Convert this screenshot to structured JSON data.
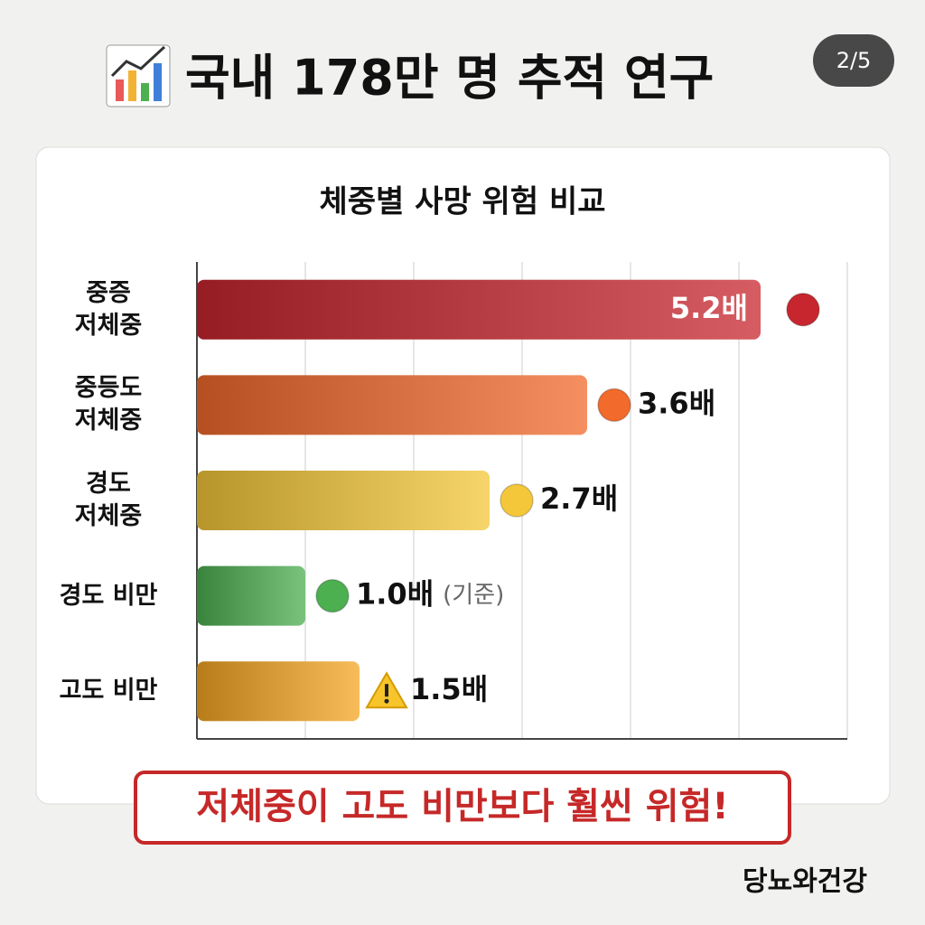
{
  "header": {
    "title": "국내 178만 명 추적 연구",
    "badge": "2/5"
  },
  "chart_data": {
    "type": "hbar",
    "title": "체중별 사망 위험 비교",
    "categories": [
      "중증\n저체중",
      "중등도\n저체중",
      "경도\n저체중",
      "경도 비만",
      "고도 비만"
    ],
    "values": [
      5.2,
      3.6,
      2.7,
      1.0,
      1.5
    ],
    "value_labels": [
      "5.2배",
      "3.6배",
      "2.7배",
      "1.0배",
      "1.5배"
    ],
    "value_notes": [
      null,
      null,
      null,
      "(기준)",
      null
    ],
    "colors": [
      "#c8262e",
      "#f26a2c",
      "#f4c73a",
      "#4caf50",
      "#f5a623"
    ],
    "markers": [
      "circle",
      "circle",
      "circle",
      "circle",
      "warning"
    ],
    "xlim": [
      0,
      6
    ],
    "xticks": [
      0,
      1,
      2,
      3,
      4,
      5,
      6
    ],
    "grid": true
  },
  "callout": "저체중이 고도 비만보다 훨씬 위험!",
  "footer": {
    "brand": "당뇨와건강"
  }
}
